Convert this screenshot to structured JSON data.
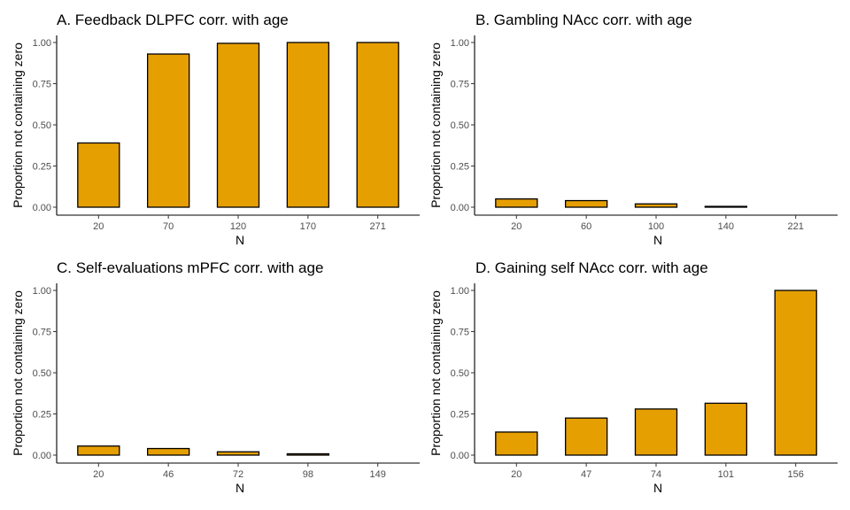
{
  "figure": {
    "bar_fill": "#E69F00",
    "bar_stroke": "#000000"
  },
  "chart_data": [
    {
      "type": "bar",
      "title": "A. Feedback DLPFC corr. with age",
      "xlabel": "N",
      "ylabel": "Proportion not containing zero",
      "categories": [
        "20",
        "70",
        "120",
        "170",
        "271"
      ],
      "values": [
        0.39,
        0.93,
        0.995,
        1.0,
        1.0
      ],
      "ylim": [
        0,
        1.0
      ],
      "yticks": [
        0.0,
        0.25,
        0.5,
        0.75,
        1.0
      ],
      "ytick_labels": [
        "0.00",
        "0.25",
        "0.50",
        "0.75",
        "1.00"
      ],
      "grid": false,
      "legend": "none"
    },
    {
      "type": "bar",
      "title": "B. Gambling NAcc corr. with age",
      "xlabel": "N",
      "ylabel": "Proportion not containing zero",
      "categories": [
        "20",
        "60",
        "100",
        "140",
        "221"
      ],
      "values": [
        0.05,
        0.04,
        0.02,
        0.005,
        0.0
      ],
      "ylim": [
        0,
        1.0
      ],
      "yticks": [
        0.0,
        0.25,
        0.5,
        0.75,
        1.0
      ],
      "ytick_labels": [
        "0.00",
        "0.25",
        "0.50",
        "0.75",
        "1.00"
      ],
      "grid": false,
      "legend": "none"
    },
    {
      "type": "bar",
      "title": "C. Self-evaluations mPFC corr. with age",
      "xlabel": "N",
      "ylabel": "Proportion not containing zero",
      "categories": [
        "20",
        "46",
        "72",
        "98",
        "149"
      ],
      "values": [
        0.055,
        0.04,
        0.02,
        0.008,
        0.0
      ],
      "ylim": [
        0,
        1.0
      ],
      "yticks": [
        0.0,
        0.25,
        0.5,
        0.75,
        1.0
      ],
      "ytick_labels": [
        "0.00",
        "0.25",
        "0.50",
        "0.75",
        "1.00"
      ],
      "grid": false,
      "legend": "none"
    },
    {
      "type": "bar",
      "title": "D. Gaining self NAcc corr. with age",
      "xlabel": "N",
      "ylabel": "Proportion not containing zero",
      "categories": [
        "20",
        "47",
        "74",
        "101",
        "156"
      ],
      "values": [
        0.14,
        0.225,
        0.28,
        0.315,
        1.0
      ],
      "ylim": [
        0,
        1.0
      ],
      "yticks": [
        0.0,
        0.25,
        0.5,
        0.75,
        1.0
      ],
      "ytick_labels": [
        "0.00",
        "0.25",
        "0.50",
        "0.75",
        "1.00"
      ],
      "grid": false,
      "legend": "none"
    }
  ]
}
